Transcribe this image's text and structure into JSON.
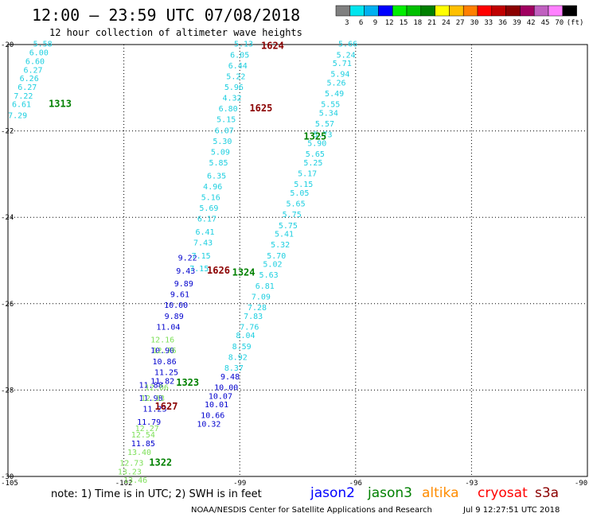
{
  "header": {
    "title": "12:00 – 23:59 UTC 07/08/2018",
    "subtitle": "12 hour collection of altimeter wave heights"
  },
  "colorbar": {
    "colors": [
      "#808080",
      "#00e5ee",
      "#00b0f0",
      "#0000ff",
      "#00ee00",
      "#00c000",
      "#008000",
      "#ffff00",
      "#ffc000",
      "#ff8000",
      "#ff0000",
      "#c00000",
      "#8b0000",
      "#a00060",
      "#c060c0",
      "#ff80ff",
      "#000000"
    ],
    "labels": [
      "3",
      "6",
      "9",
      "12",
      "15",
      "18",
      "21",
      "24",
      "27",
      "30",
      "33",
      "36",
      "39",
      "42",
      "45",
      "70",
      "(ft)"
    ]
  },
  "chart_data": {
    "type": "scatter",
    "xlim": [
      -105,
      -90
    ],
    "ylim": [
      -30,
      -20
    ],
    "x_ticks": [
      "-105",
      "-102",
      "-99",
      "-96",
      "-93",
      "-90"
    ],
    "y_ticks": [
      "-20",
      "-22",
      "-24",
      "-26",
      "-28",
      "-30"
    ],
    "grid": true,
    "passes": [
      {
        "satellite": "jason2",
        "points": [
          {
            "x": -100.35,
            "y": -25.0,
            "v": "9.22"
          },
          {
            "x": -100.4,
            "y": -25.3,
            "v": "9.43"
          },
          {
            "x": -100.45,
            "y": -25.6,
            "v": "9.89"
          },
          {
            "x": -100.55,
            "y": -25.85,
            "v": "9.61"
          },
          {
            "x": -100.65,
            "y": -26.1,
            "v": "10.00"
          },
          {
            "x": -100.7,
            "y": -26.35,
            "v": "9.89"
          },
          {
            "x": -100.85,
            "y": -26.6,
            "v": "11.04"
          },
          {
            "x": -101.0,
            "y": -27.15,
            "v": "10.90"
          },
          {
            "x": -100.95,
            "y": -27.4,
            "v": "10.86"
          },
          {
            "x": -100.9,
            "y": -27.65,
            "v": "11.25"
          },
          {
            "x": -101.0,
            "y": -27.85,
            "v": "11.82"
          },
          {
            "x": -101.3,
            "y": -28.25,
            "v": "11.98"
          },
          {
            "x": -101.2,
            "y": -28.5,
            "v": "11.23"
          },
          {
            "x": -101.35,
            "y": -28.8,
            "v": "11.79"
          },
          {
            "x": -101.5,
            "y": -29.3,
            "v": "11.85"
          },
          {
            "x": -101.3,
            "y": -27.95,
            "v": "11.88"
          }
        ]
      },
      {
        "satellite": "jason3",
        "points": [
          {
            "x": -101.0,
            "y": -26.9,
            "v": "12.16"
          },
          {
            "x": -100.95,
            "y": -27.15,
            "v": "12.76"
          },
          {
            "x": -101.15,
            "y": -28.0,
            "v": "12.06"
          },
          {
            "x": -101.25,
            "y": -28.25,
            "v": "12.33"
          },
          {
            "x": -101.4,
            "y": -28.95,
            "v": "12.27"
          },
          {
            "x": -101.5,
            "y": -29.1,
            "v": "12.54"
          },
          {
            "x": -101.6,
            "y": -29.5,
            "v": "13.40"
          },
          {
            "x": -101.8,
            "y": -29.75,
            "v": "12.73"
          },
          {
            "x": -101.85,
            "y": -29.95,
            "v": "13.23"
          },
          {
            "x": -101.7,
            "y": -30.15,
            "v": "13.46"
          }
        ],
        "pass_labels": [
          {
            "x": -101.05,
            "y": -29.75,
            "text": "1322"
          },
          {
            "x": -100.35,
            "y": -27.9,
            "text": "1323"
          },
          {
            "x": -98.9,
            "y": -25.35,
            "text": "1324"
          },
          {
            "x": -97.05,
            "y": -22.2,
            "text": "1325"
          },
          {
            "x": -103.65,
            "y": -21.45,
            "text": "1313"
          }
        ]
      },
      {
        "satellite": "s3a-cyan",
        "points": [
          {
            "x": -104.1,
            "y": -20.05,
            "v": "5.58"
          },
          {
            "x": -104.2,
            "y": -20.25,
            "v": "6.00"
          },
          {
            "x": -104.3,
            "y": -20.45,
            "v": "6.60"
          },
          {
            "x": -104.35,
            "y": -20.65,
            "v": "6.27"
          },
          {
            "x": -104.45,
            "y": -20.85,
            "v": "6.26"
          },
          {
            "x": -104.5,
            "y": -21.05,
            "v": "6.27"
          },
          {
            "x": -104.6,
            "y": -21.25,
            "v": "7.22"
          },
          {
            "x": -104.65,
            "y": -21.45,
            "v": "6.61"
          },
          {
            "x": -104.75,
            "y": -21.7,
            "v": "7.29"
          },
          {
            "x": -98.9,
            "y": -20.05,
            "v": "5.13"
          },
          {
            "x": -99.0,
            "y": -20.3,
            "v": "6.05"
          },
          {
            "x": -99.05,
            "y": -20.55,
            "v": "6.44"
          },
          {
            "x": -99.1,
            "y": -20.8,
            "v": "5.22"
          },
          {
            "x": -99.15,
            "y": -21.05,
            "v": "5.96"
          },
          {
            "x": -99.2,
            "y": -21.3,
            "v": "4.32"
          },
          {
            "x": -99.3,
            "y": -21.55,
            "v": "6.80"
          },
          {
            "x": -99.35,
            "y": -21.8,
            "v": "5.15"
          },
          {
            "x": -99.4,
            "y": -22.05,
            "v": "6.07"
          },
          {
            "x": -99.45,
            "y": -22.3,
            "v": "5.30"
          },
          {
            "x": -99.5,
            "y": -22.55,
            "v": "5.09"
          },
          {
            "x": -99.55,
            "y": -22.8,
            "v": "5.85"
          },
          {
            "x": -99.6,
            "y": -23.1,
            "v": "6.35"
          },
          {
            "x": -99.7,
            "y": -23.35,
            "v": "4.96"
          },
          {
            "x": -99.75,
            "y": -23.6,
            "v": "5.16"
          },
          {
            "x": -99.8,
            "y": -23.85,
            "v": "5.69"
          },
          {
            "x": -99.85,
            "y": -24.1,
            "v": "6.17"
          },
          {
            "x": -99.9,
            "y": -24.4,
            "v": "6.41"
          },
          {
            "x": -99.95,
            "y": -24.65,
            "v": "7.43"
          },
          {
            "x": -100.0,
            "y": -24.95,
            "v": "7.15"
          },
          {
            "x": -100.05,
            "y": -25.25,
            "v": "7.15"
          },
          {
            "x": -96.2,
            "y": -20.05,
            "v": "5.66"
          },
          {
            "x": -96.25,
            "y": -20.3,
            "v": "5.24"
          },
          {
            "x": -96.35,
            "y": -20.5,
            "v": "5.71"
          },
          {
            "x": -96.4,
            "y": -20.75,
            "v": "5.94"
          },
          {
            "x": -96.5,
            "y": -20.95,
            "v": "5.26"
          },
          {
            "x": -96.55,
            "y": -21.2,
            "v": "5.49"
          },
          {
            "x": -96.65,
            "y": -21.45,
            "v": "5.55"
          },
          {
            "x": -96.7,
            "y": -21.65,
            "v": "5.34"
          },
          {
            "x": -96.8,
            "y": -21.9,
            "v": "5.57"
          },
          {
            "x": -96.85,
            "y": -22.15,
            "v": "5.73"
          },
          {
            "x": -97.0,
            "y": -22.35,
            "v": "5.90"
          },
          {
            "x": -97.05,
            "y": -22.6,
            "v": "5.65"
          },
          {
            "x": -97.1,
            "y": -22.8,
            "v": "5.25"
          },
          {
            "x": -97.25,
            "y": -23.05,
            "v": "5.17"
          },
          {
            "x": -97.35,
            "y": -23.3,
            "v": "5.15"
          },
          {
            "x": -97.45,
            "y": -23.5,
            "v": "5.05"
          },
          {
            "x": -97.55,
            "y": -23.75,
            "v": "5.65"
          },
          {
            "x": -97.65,
            "y": -24.0,
            "v": "5.75"
          },
          {
            "x": -97.75,
            "y": -24.25,
            "v": "5.75"
          },
          {
            "x": -97.85,
            "y": -24.45,
            "v": "5.41"
          },
          {
            "x": -97.95,
            "y": -24.7,
            "v": "5.32"
          },
          {
            "x": -98.05,
            "y": -24.95,
            "v": "5.70"
          },
          {
            "x": -98.15,
            "y": -25.15,
            "v": "5.02"
          },
          {
            "x": -98.25,
            "y": -25.4,
            "v": "5.63"
          },
          {
            "x": -98.35,
            "y": -25.65,
            "v": "6.81"
          },
          {
            "x": -98.45,
            "y": -25.9,
            "v": "7.09"
          },
          {
            "x": -98.55,
            "y": -26.15,
            "v": "7.28"
          },
          {
            "x": -98.65,
            "y": -26.35,
            "v": "7.83"
          },
          {
            "x": -98.75,
            "y": -26.6,
            "v": "7.76"
          },
          {
            "x": -98.85,
            "y": -26.8,
            "v": "8.04"
          },
          {
            "x": -98.95,
            "y": -27.05,
            "v": "8.59"
          },
          {
            "x": -99.05,
            "y": -27.3,
            "v": "8.92"
          },
          {
            "x": -99.15,
            "y": -27.55,
            "v": "8.37"
          },
          {
            "x": -99.25,
            "y": -27.75,
            "v": "9.48"
          },
          {
            "x": -99.35,
            "y": -28.0,
            "v": "10.00"
          },
          {
            "x": -99.5,
            "y": -28.2,
            "v": "10.07"
          },
          {
            "x": -99.6,
            "y": -28.4,
            "v": "10.01"
          },
          {
            "x": -99.7,
            "y": -28.65,
            "v": "10.66"
          },
          {
            "x": -99.8,
            "y": -28.85,
            "v": "10.32"
          }
        ],
        "pass_labels": [
          {
            "x": -98.15,
            "y": -20.1,
            "text": "1624"
          },
          {
            "x": -98.45,
            "y": -21.55,
            "text": "1625"
          },
          {
            "x": -99.55,
            "y": -25.3,
            "text": "1626"
          },
          {
            "x": -100.9,
            "y": -28.45,
            "text": "1627"
          }
        ]
      }
    ]
  },
  "footer": {
    "note": "note:  1) Time is in UTC;  2) SWH is in feet",
    "legend": [
      {
        "name": "jason2",
        "color": "#0000ff"
      },
      {
        "name": "jason3",
        "color": "#008000"
      },
      {
        "name": "altika",
        "color": "#ff8c00"
      },
      {
        "name": "cryosat",
        "color": "#ff0000"
      },
      {
        "name": "s3a",
        "color": "#8b0000"
      }
    ],
    "credit": "NOAA/NESDIS Center for Satellite Applications and Research",
    "timestamp": "Jul  9 12:27:51 UTC 2018"
  }
}
